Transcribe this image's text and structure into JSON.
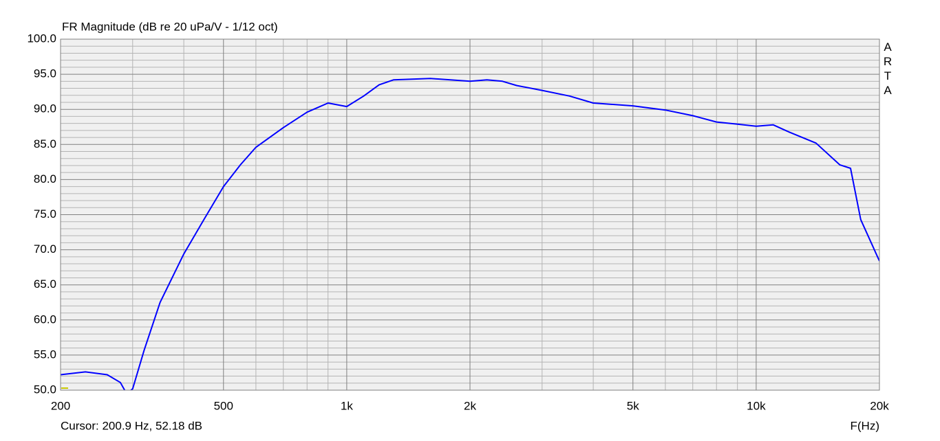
{
  "chart_data": {
    "type": "line",
    "title": "FR Magnitude (dB re 20 uPa/V - 1/12 oct)",
    "watermark": "ARTA",
    "x_label": "F(Hz)",
    "cursor": "Cursor: 200.9 Hz, 52.18 dB",
    "xscale": "log",
    "x": [
      200,
      230,
      260,
      280,
      290,
      300,
      320,
      350,
      400,
      450,
      500,
      550,
      600,
      700,
      800,
      900,
      1000,
      1100,
      1200,
      1300,
      1600,
      2000,
      2200,
      2400,
      2600,
      3000,
      3500,
      4000,
      5000,
      6000,
      7000,
      8000,
      9000,
      10000,
      11000,
      12000,
      14000,
      16000,
      17000,
      18000,
      20000
    ],
    "series": [
      {
        "color": "#0000ff",
        "values": [
          52.2,
          52.6,
          52.2,
          51.1,
          49.5,
          50.2,
          55.7,
          62.5,
          69.4,
          74.5,
          79,
          82.1,
          84.6,
          87.4,
          89.6,
          90.9,
          90.4,
          91.9,
          93.5,
          94.2,
          94.4,
          94.0,
          94.2,
          94.0,
          93.4,
          92.7,
          91.9,
          90.9,
          90.5,
          89.9,
          89.1,
          88.2,
          87.9,
          87.6,
          87.8,
          86.8,
          85.2,
          82.1,
          81.6,
          74.3,
          68.4
        ]
      }
    ],
    "xlim": [
      200,
      20000
    ],
    "ylim": [
      50,
      100
    ],
    "xticks": [
      200,
      500,
      {
        "value": 1000,
        "label": "1k"
      },
      {
        "value": 2000,
        "label": "2k"
      },
      {
        "value": 5000,
        "label": "5k"
      },
      {
        "value": 10000,
        "label": "10k"
      },
      {
        "value": 20000,
        "label": "20k"
      }
    ],
    "yticks": [
      {
        "value": 50,
        "label": "50.0"
      },
      {
        "value": 55,
        "label": "55.0"
      },
      {
        "value": 60,
        "label": "60.0"
      },
      {
        "value": 65,
        "label": "65.0"
      },
      {
        "value": 70,
        "label": "70.0"
      },
      {
        "value": 75,
        "label": "75.0"
      },
      {
        "value": 80,
        "label": "80.0"
      },
      {
        "value": 85,
        "label": "85.0"
      },
      {
        "value": 90,
        "label": "90.0"
      },
      {
        "value": 95,
        "label": "95.0"
      },
      {
        "value": 100,
        "label": "100.0"
      }
    ],
    "x_minor_grid": [
      300,
      400,
      600,
      700,
      800,
      900,
      3000,
      4000,
      6000,
      7000,
      8000,
      9000
    ],
    "y_minor_grid": [
      51,
      52,
      53,
      54,
      56,
      57,
      58,
      59,
      61,
      62,
      63,
      64,
      66,
      67,
      68,
      69,
      71,
      72,
      73,
      74,
      76,
      77,
      78,
      79,
      81,
      82,
      83,
      84,
      86,
      87,
      88,
      89,
      91,
      92,
      93,
      94,
      96,
      97,
      98,
      99
    ],
    "grid": true
  }
}
